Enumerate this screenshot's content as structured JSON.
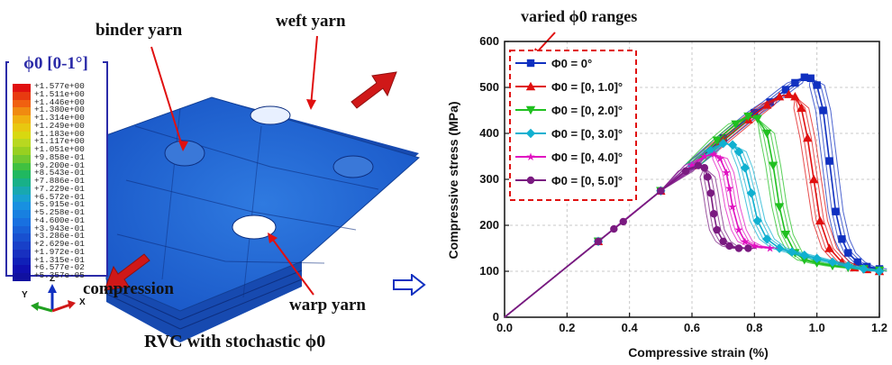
{
  "left_panel": {
    "legend_title": "ϕ0 [0-1°]",
    "colorbar_labels": [
      "+1.577e+00",
      "+1.511e+00",
      "+1.446e+00",
      "+1.380e+00",
      "+1.314e+00",
      "+1.249e+00",
      "+1.183e+00",
      "+1.117e+00",
      "+1.051e+00",
      "+9.858e-01",
      "+9.200e-01",
      "+8.543e-01",
      "+7.886e-01",
      "+7.229e-01",
      "+6.572e-01",
      "+5.915e-01",
      "+5.258e-01",
      "+4.600e-01",
      "+3.943e-01",
      "+3.286e-01",
      "+2.629e-01",
      "+1.972e-01",
      "+1.315e-01",
      "+6.577e-02",
      "+5.357e-05"
    ],
    "colorbar_colors": [
      "#e01010",
      "#e83a10",
      "#f06010",
      "#f08a10",
      "#f0b010",
      "#e8c810",
      "#d8d810",
      "#b8d820",
      "#98d020",
      "#70c830",
      "#40c040",
      "#20b860",
      "#18b088",
      "#18a8b0",
      "#18a0d0",
      "#1890e0",
      "#1880e0",
      "#1870e0",
      "#1860d8",
      "#1850d0",
      "#1840c8",
      "#1830c0",
      "#1020b8",
      "#1010b0",
      "#1010a0"
    ],
    "annotations": {
      "binder": "binder yarn",
      "weft": "weft yarn",
      "warp": "warp yarn",
      "compression": "compression"
    },
    "axis_triad": {
      "z": "Z",
      "y": "Y",
      "x": "X"
    },
    "caption": "RVC with stochastic ϕ0"
  },
  "right_panel": {
    "varied_label": "varied ϕ0 ranges"
  },
  "chart_data": {
    "type": "line",
    "xlabel": "Compressive strain (%)",
    "ylabel": "Compressive stress (MPa)",
    "xlim": [
      0.0,
      1.2
    ],
    "ylim": [
      0,
      600
    ],
    "xticks": [
      "0.0",
      "0.2",
      "0.4",
      "0.6",
      "0.8",
      "1.0",
      "1.2"
    ],
    "yticks": [
      "0",
      "100",
      "200",
      "300",
      "400",
      "500",
      "600"
    ],
    "grid": true,
    "legend_placement": "top-left",
    "series": [
      {
        "name": "Φ0 = 0°",
        "color": "#1030c0",
        "marker": "square",
        "x": [
          0.0,
          0.3,
          0.5,
          0.6,
          0.7,
          0.8,
          0.85,
          0.9,
          0.93,
          0.96,
          0.98,
          1.0,
          1.02,
          1.04,
          1.06,
          1.08,
          1.1,
          1.13,
          1.16,
          1.2
        ],
        "y": [
          0,
          165,
          275,
          330,
          390,
          445,
          468,
          495,
          510,
          522,
          520,
          505,
          450,
          340,
          230,
          170,
          140,
          120,
          110,
          105
        ]
      },
      {
        "name": "Φ0 = [0, 1.0]°",
        "color": "#e01010",
        "marker": "triangle-up",
        "x": [
          0.0,
          0.3,
          0.5,
          0.6,
          0.7,
          0.78,
          0.84,
          0.88,
          0.91,
          0.93,
          0.95,
          0.97,
          0.99,
          1.01,
          1.04,
          1.08,
          1.12,
          1.16,
          1.2
        ],
        "y": [
          0,
          165,
          275,
          330,
          385,
          430,
          462,
          480,
          485,
          480,
          455,
          390,
          300,
          210,
          150,
          120,
          108,
          104,
          100
        ]
      },
      {
        "name": "Φ0 = [0, 2.0]°",
        "color": "#20c020",
        "marker": "triangle-down",
        "x": [
          0.0,
          0.3,
          0.5,
          0.6,
          0.68,
          0.74,
          0.78,
          0.81,
          0.84,
          0.86,
          0.88,
          0.9,
          0.93,
          0.96,
          1.0,
          1.05,
          1.1,
          1.15,
          1.2
        ],
        "y": [
          0,
          165,
          275,
          330,
          385,
          420,
          437,
          432,
          400,
          330,
          240,
          180,
          140,
          125,
          118,
          112,
          108,
          105,
          102
        ]
      },
      {
        "name": "Φ0 = [0, 3.0]°",
        "color": "#10b0d0",
        "marker": "diamond",
        "x": [
          0.0,
          0.3,
          0.5,
          0.6,
          0.66,
          0.7,
          0.73,
          0.75,
          0.77,
          0.79,
          0.81,
          0.84,
          0.88,
          0.92,
          0.96,
          1.0,
          1.05,
          1.1,
          1.15,
          1.2
        ],
        "y": [
          0,
          165,
          275,
          330,
          362,
          378,
          375,
          360,
          325,
          270,
          210,
          170,
          150,
          142,
          135,
          128,
          120,
          112,
          105,
          100
        ]
      },
      {
        "name": "Φ0 = [0, 4.0]°",
        "color": "#e010c0",
        "marker": "star",
        "x": [
          0.0,
          0.3,
          0.5,
          0.6,
          0.64,
          0.67,
          0.69,
          0.71,
          0.72,
          0.73,
          0.75,
          0.77,
          0.8,
          0.85
        ],
        "y": [
          0,
          165,
          275,
          330,
          350,
          355,
          345,
          315,
          280,
          240,
          190,
          165,
          155,
          150
        ]
      },
      {
        "name": "Φ0 = [0, 5.0]°",
        "color": "#7a1a80",
        "marker": "circle",
        "x": [
          0.0,
          0.3,
          0.35,
          0.38,
          0.5,
          0.58,
          0.62,
          0.64,
          0.65,
          0.66,
          0.67,
          0.68,
          0.7,
          0.72,
          0.75,
          0.78
        ],
        "y": [
          0,
          165,
          192,
          208,
          275,
          318,
          330,
          325,
          305,
          270,
          225,
          190,
          165,
          155,
          150,
          150
        ]
      }
    ]
  }
}
